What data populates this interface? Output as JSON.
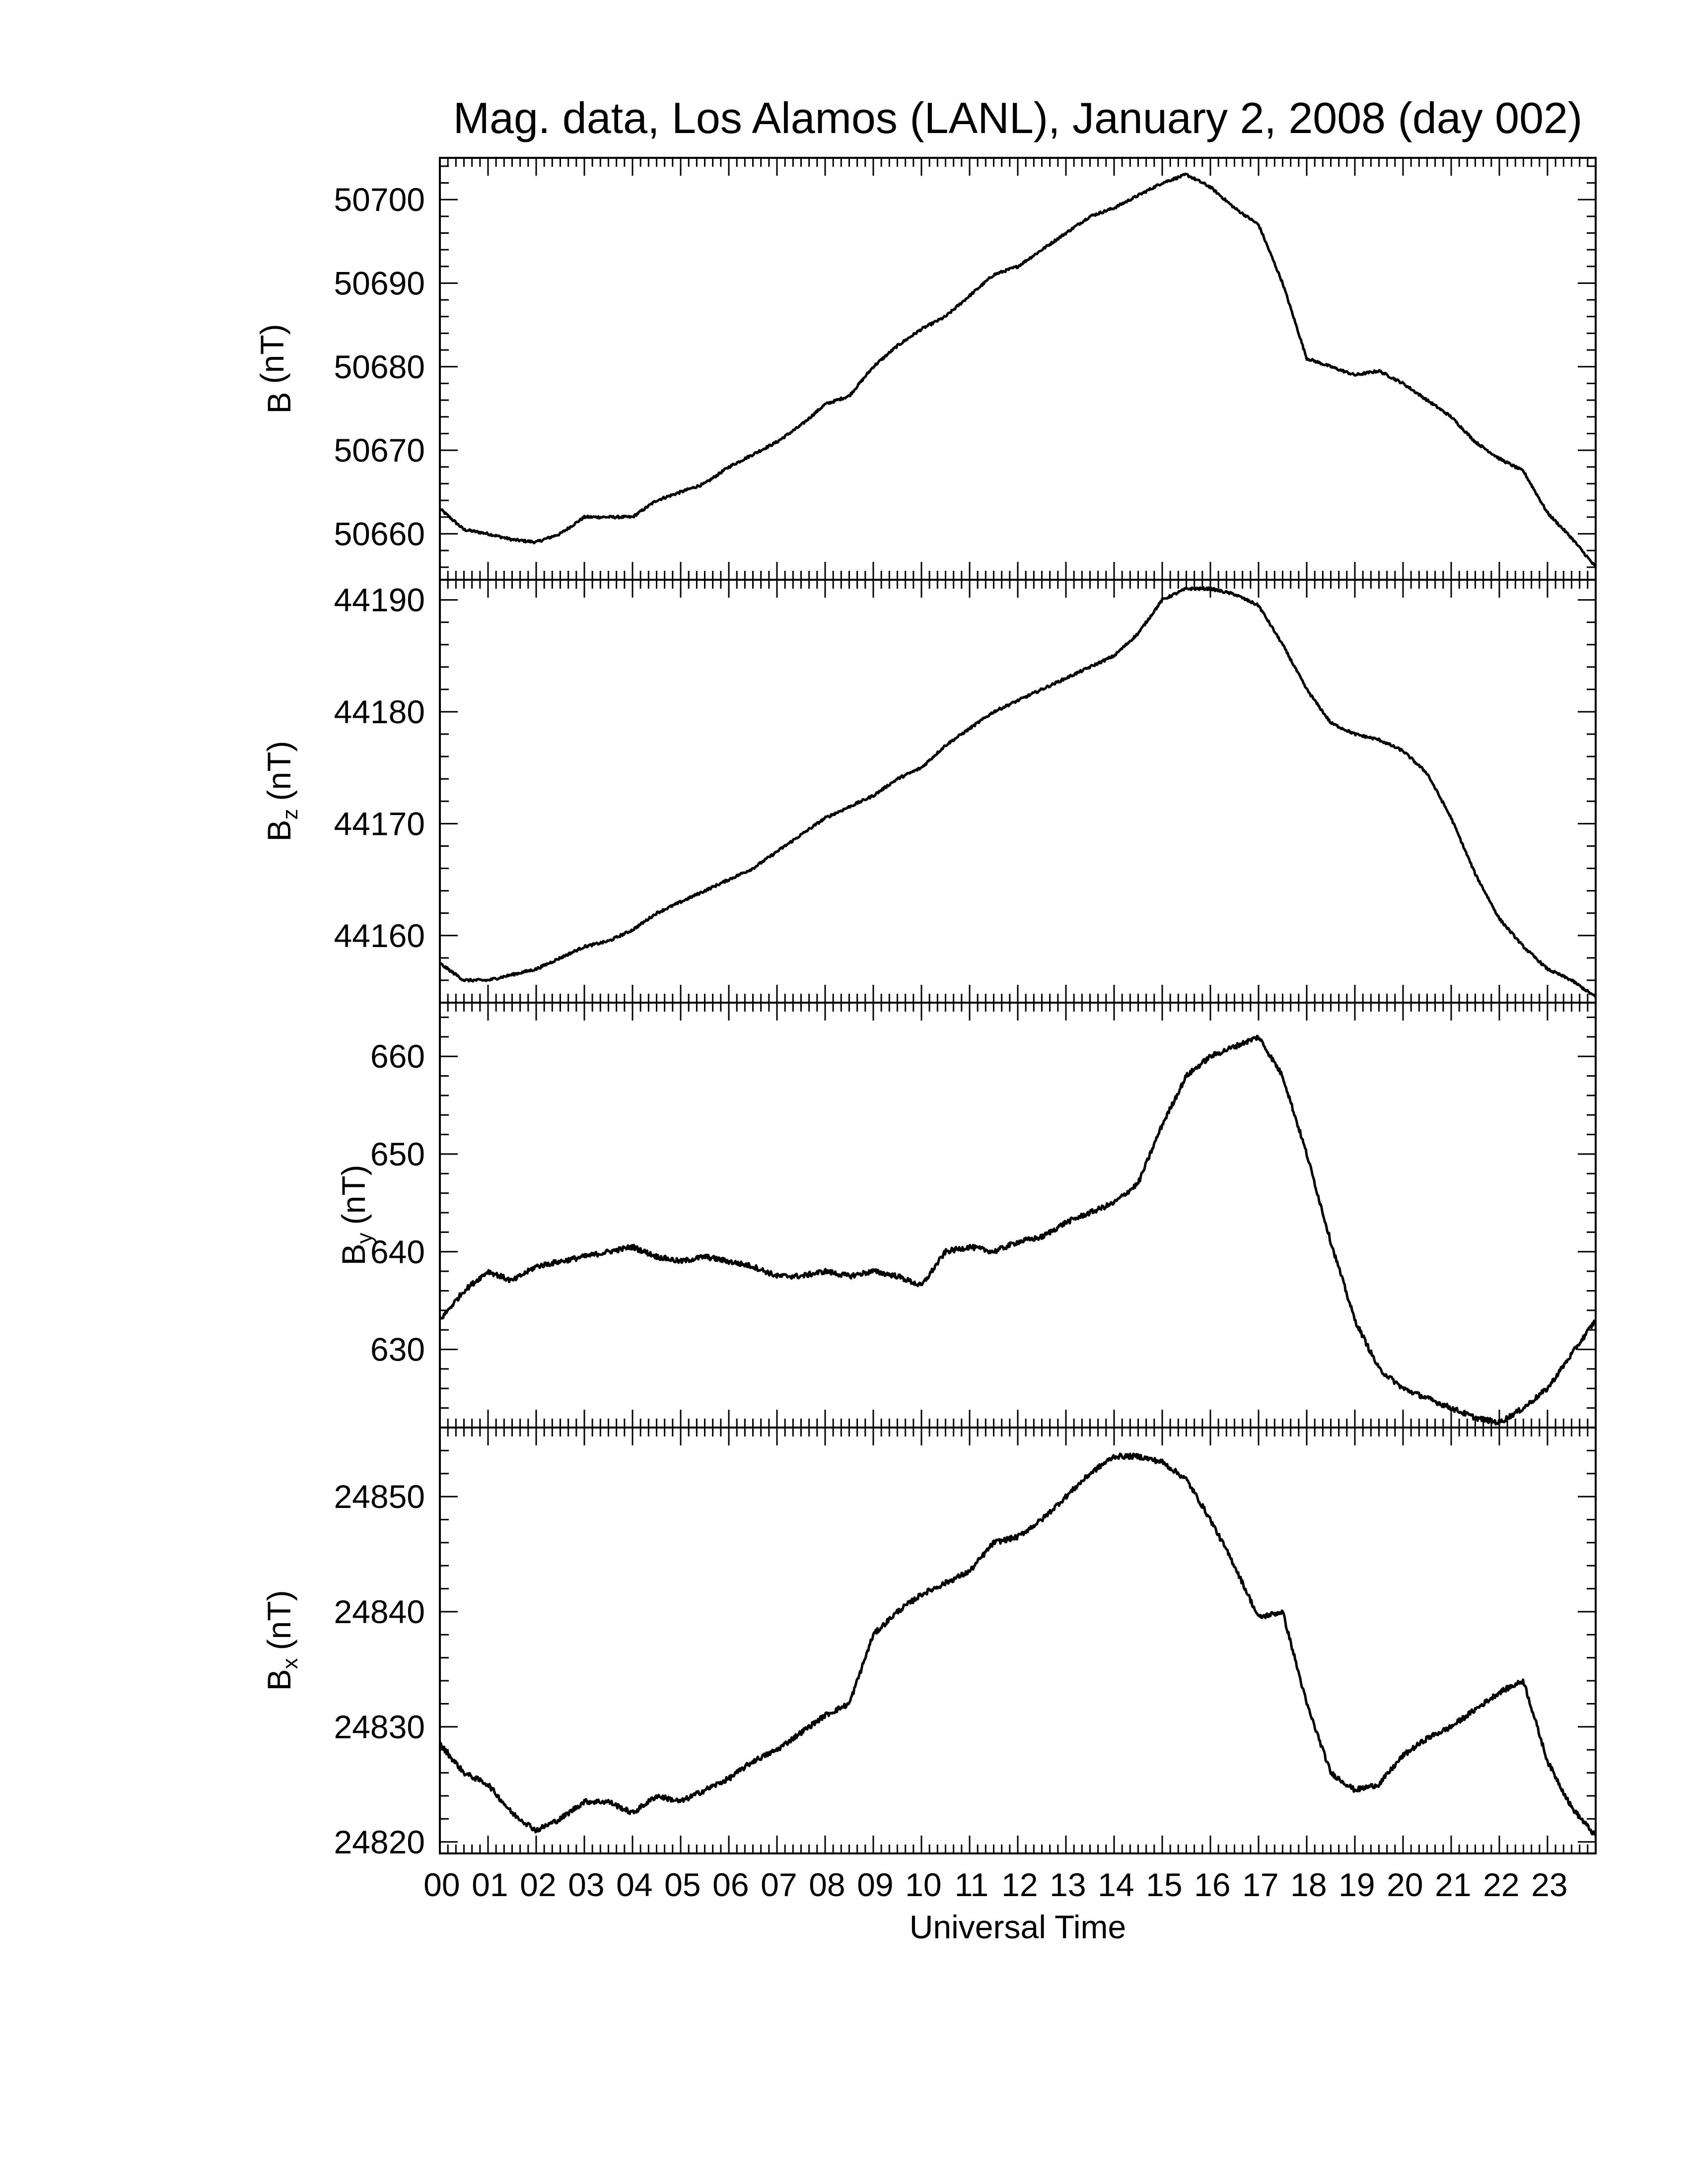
{
  "figure": {
    "title": "Mag. data, Los Alamos (LANL), January 2, 2008 (day 002)",
    "xlabel": "Universal Time",
    "x_tick_labels": [
      "00",
      "01",
      "02",
      "03",
      "04",
      "05",
      "06",
      "07",
      "08",
      "09",
      "10",
      "11",
      "12",
      "13",
      "14",
      "15",
      "16",
      "17",
      "18",
      "19",
      "20",
      "21",
      "22",
      "23"
    ]
  },
  "colors": {
    "line": "#000000",
    "axes": "#000000",
    "background": "#ffffff"
  },
  "chart_data": [
    {
      "type": "line",
      "ylabel": "B (nT)",
      "ylabel_main": "B",
      "ylabel_sub": "",
      "ylabel_unit": "(nT)",
      "xlim": [
        0,
        24
      ],
      "ylim": [
        50654.5,
        50705.0
      ],
      "yticks": [
        50660,
        50670,
        50680,
        50690,
        50700
      ],
      "series": [
        {
          "x": [
            0,
            0.5,
            1,
            1.5,
            2,
            2.5,
            3,
            3.5,
            4,
            4.5,
            5,
            5.5,
            6,
            6.5,
            7,
            7.5,
            8,
            8.5,
            9,
            9.5,
            10,
            10.5,
            11,
            11.5,
            12,
            12.5,
            13,
            13.5,
            14,
            14.5,
            15,
            15.5,
            16,
            16.5,
            17,
            17.5,
            18,
            18.5,
            19,
            19.5,
            20,
            20.5,
            21,
            21.5,
            22,
            22.5,
            23,
            23.5,
            24
          ],
          "y": [
            50663,
            50660.5,
            50660,
            50659.3,
            50659,
            50660,
            50662,
            50662,
            50662,
            50664,
            50665,
            50666,
            50668,
            50669.5,
            50671,
            50673,
            50675.5,
            50676.5,
            50680,
            50682.5,
            50684.5,
            50686,
            50688.5,
            50691,
            50692,
            50694,
            50696,
            50698,
            50699,
            50700.5,
            50702,
            50703,
            50701.5,
            50699,
            50697,
            50690,
            50681,
            50680,
            50679,
            50679.5,
            50678,
            50676,
            50674,
            50671,
            50669,
            50667.5,
            50662.5,
            50659.5,
            50656
          ]
        }
      ]
    },
    {
      "type": "line",
      "ylabel": "Bz (nT)",
      "ylabel_main": "B",
      "ylabel_sub": "z",
      "ylabel_unit": "(nT)",
      "xlim": [
        0,
        24
      ],
      "ylim": [
        44154.0,
        44191.8
      ],
      "yticks": [
        44160,
        44170,
        44180,
        44190
      ],
      "series": [
        {
          "x": [
            0,
            0.5,
            1,
            1.5,
            2,
            2.5,
            3,
            3.5,
            4,
            4.5,
            5,
            5.5,
            6,
            6.5,
            7,
            7.5,
            8,
            8.5,
            9,
            9.5,
            10,
            10.5,
            11,
            11.5,
            12,
            12.5,
            13,
            13.5,
            14,
            14.5,
            15,
            15.5,
            16,
            16.5,
            17,
            17.5,
            18,
            18.5,
            19,
            19.5,
            20,
            20.5,
            21,
            21.5,
            22,
            22.5,
            23,
            23.5,
            24
          ],
          "y": [
            44157.5,
            44156,
            44156,
            44156.5,
            44157,
            44158,
            44159,
            44159.5,
            44160.5,
            44162,
            44163,
            44164,
            44165,
            44166,
            44167.5,
            44169,
            44170.5,
            44171.5,
            44172.5,
            44174,
            44175,
            44177,
            44178.5,
            44180,
            44181,
            44182,
            44183,
            44184,
            44185,
            44187,
            44190,
            44191,
            44191,
            44190.5,
            44189.5,
            44186,
            44182,
            44179,
            44178,
            44177.5,
            44176.5,
            44174.5,
            44170.5,
            44165.5,
            44161.5,
            44159,
            44157,
            44156,
            44154.5
          ]
        }
      ]
    },
    {
      "type": "line",
      "ylabel": "By (nT)",
      "ylabel_main": "B",
      "ylabel_sub": "y",
      "ylabel_unit": "(nT)",
      "xlim": [
        0,
        24
      ],
      "ylim": [
        622.0,
        665.5
      ],
      "yticks": [
        630,
        640,
        650,
        660
      ],
      "series": [
        {
          "x": [
            0,
            0.5,
            1,
            1.5,
            2,
            2.5,
            3,
            3.5,
            4,
            4.5,
            5,
            5.5,
            6,
            6.5,
            7,
            7.5,
            8,
            8.5,
            9,
            9.5,
            10,
            10.5,
            11,
            11.5,
            12,
            12.5,
            13,
            13.5,
            14,
            14.5,
            15,
            15.5,
            16,
            16.5,
            17,
            17.5,
            18,
            18.5,
            19,
            19.5,
            20,
            20.5,
            21,
            21.5,
            22,
            22.5,
            23,
            23.5,
            24
          ],
          "y": [
            633,
            636,
            638,
            637,
            638.5,
            639,
            639.5,
            640,
            640.5,
            639.5,
            639,
            639.5,
            639,
            638.5,
            637.5,
            637.5,
            638,
            637.5,
            638,
            637.5,
            636.5,
            640,
            640.5,
            640,
            641,
            641.5,
            643,
            644,
            645,
            647,
            653,
            658,
            660,
            661,
            662,
            658,
            650,
            641,
            633,
            628,
            626,
            625,
            624,
            623,
            622.5,
            624,
            626,
            629.5,
            633
          ]
        }
      ]
    },
    {
      "type": "line",
      "ylabel": "Bx (nT)",
      "ylabel_main": "B",
      "ylabel_sub": "x",
      "ylabel_unit": "(nT)",
      "xlim": [
        0,
        24
      ],
      "ylim": [
        24819.0,
        24856.0
      ],
      "yticks": [
        24820,
        24830,
        24840,
        24850
      ],
      "series": [
        {
          "x": [
            0,
            0.5,
            1,
            1.5,
            2,
            2.5,
            3,
            3.5,
            4,
            4.5,
            5,
            5.5,
            6,
            6.5,
            7,
            7.5,
            8,
            8.5,
            9,
            9.5,
            10,
            10.5,
            11,
            11.5,
            12,
            12.5,
            13,
            13.5,
            14,
            14.5,
            15,
            15.5,
            16,
            16.5,
            17,
            17.5,
            18,
            18.5,
            19,
            19.5,
            20,
            20.5,
            21,
            21.5,
            22,
            22.5,
            23,
            23.5,
            24
          ],
          "y": [
            24828.5,
            24826,
            24825,
            24822.5,
            24821,
            24822,
            24823.5,
            24823.5,
            24822.5,
            24824,
            24823.5,
            24824.5,
            24825.5,
            24827,
            24828,
            24829.5,
            24831,
            24832,
            24838,
            24840,
            24841.5,
            24842.5,
            24843.5,
            24846,
            24846.5,
            24848,
            24850,
            24852,
            24853.5,
            24853.5,
            24853,
            24851.5,
            24848,
            24844,
            24839.5,
            24840,
            24832,
            24826,
            24824.5,
            24825,
            24827.5,
            24829,
            24830,
            24831.5,
            24833,
            24834,
            24827,
            24823,
            24820.5
          ]
        }
      ]
    }
  ]
}
